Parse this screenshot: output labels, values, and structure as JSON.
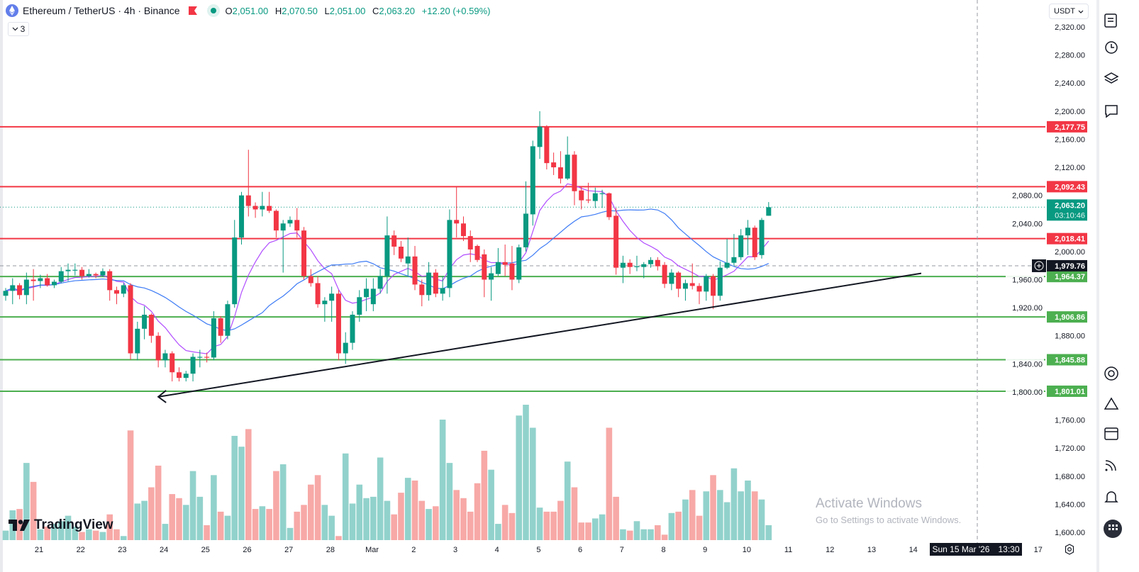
{
  "header": {
    "symbol_title": "Ethereum / TetherUS · 4h · Binance",
    "ohlc": {
      "open_label": "O",
      "open": "2,051.00",
      "high_label": "H",
      "high": "2,070.50",
      "low_label": "L",
      "low": "2,051.00",
      "close_label": "C",
      "close": "2,063.20",
      "change": "+12.20 (+0.59%)"
    },
    "indicators_toggle": "3",
    "icons": [
      "ethereum-logo-icon",
      "flag-icon",
      "market-open-dot-icon",
      "chevron-down-icon"
    ]
  },
  "currency_select": {
    "value": "USDT"
  },
  "colors": {
    "up": "#089981",
    "down": "#f23645",
    "volume_up": "#92d2cc",
    "volume_down": "#f7a9a7",
    "resistance": "#f23645",
    "support": "#4caf50",
    "ma_fast": "#b04cff",
    "ma_slow": "#3d7bf5",
    "trendline": "#131722"
  },
  "price_axis": {
    "ticks": [
      "2,320.00",
      "2,280.00",
      "2,240.00",
      "2,200.00",
      "2,160.00",
      "2,120.00",
      "2,080.00",
      "2,040.00",
      "2,000.00",
      "1,960.00",
      "1,920.00",
      "1,880.00",
      "1,840.00",
      "1,800.00",
      "1,760.00",
      "1,720.00",
      "1,680.00",
      "1,640.00",
      "1,600.00"
    ],
    "tick_values": [
      2320,
      2280,
      2240,
      2200,
      2160,
      2120,
      2080,
      2040,
      2000,
      1960,
      1920,
      1880,
      1840,
      1800,
      1760,
      1720,
      1680,
      1640,
      1600
    ]
  },
  "horizontal_levels": [
    {
      "price": 2177.75,
      "label": "2,177.75",
      "type": "resistance"
    },
    {
      "price": 2092.43,
      "label": "2,092.43",
      "type": "resistance"
    },
    {
      "price": 2018.41,
      "label": "2,018.41",
      "type": "resistance"
    },
    {
      "price": 1964.37,
      "label": "1,964.37",
      "type": "support"
    },
    {
      "price": 1906.86,
      "label": "1,906.86",
      "type": "support"
    },
    {
      "price": 1845.88,
      "label": "1,845.88",
      "type": "support"
    },
    {
      "price": 1801.01,
      "label": "1,801.01",
      "type": "support"
    }
  ],
  "current_price": {
    "price": 2063.2,
    "label": "2,063.20",
    "countdown": "03:10:46"
  },
  "crosshair": {
    "price": 1979.76,
    "label": "1,979.76",
    "time_label_day": "Sun 15 Mar '26",
    "time_label_time": "13:30"
  },
  "trendline": {
    "from": {
      "candle": 27,
      "price": 1801
    },
    "to": {
      "candle": 132,
      "price": 1969
    },
    "arrow_end": {
      "candle": 22,
      "price": 1793
    }
  },
  "date_axis": [
    "21",
    "22",
    "23",
    "24",
    "25",
    "26",
    "27",
    "28",
    "Mar",
    "2",
    "3",
    "4",
    "5",
    "6",
    "7",
    "8",
    "9",
    "10",
    "11",
    "12",
    "13",
    "14",
    "17"
  ],
  "chart_data": {
    "type": "candlestick",
    "interval": "4h",
    "ohlc": [
      [
        1937,
        1948,
        1930,
        1944
      ],
      [
        1944,
        1962,
        1925,
        1952
      ],
      [
        1952,
        1955,
        1932,
        1938
      ],
      [
        1938,
        1970,
        1925,
        1960
      ],
      [
        1960,
        1975,
        1930,
        1958
      ],
      [
        1958,
        1967,
        1948,
        1962
      ],
      [
        1962,
        1968,
        1950,
        1952
      ],
      [
        1952,
        1960,
        1948,
        1957
      ],
      [
        1957,
        1978,
        1955,
        1972
      ],
      [
        1972,
        1983,
        1958,
        1974
      ],
      [
        1974,
        1983,
        1966,
        1974
      ],
      [
        1974,
        1978,
        1960,
        1965
      ],
      [
        1965,
        1975,
        1963,
        1968
      ],
      [
        1968,
        1970,
        1962,
        1966
      ],
      [
        1966,
        1976,
        1964,
        1972
      ],
      [
        1972,
        1975,
        1930,
        1945
      ],
      [
        1945,
        1950,
        1925,
        1940
      ],
      [
        1940,
        1955,
        1935,
        1952
      ],
      [
        1952,
        1955,
        1846,
        1855
      ],
      [
        1855,
        1900,
        1845,
        1890
      ],
      [
        1890,
        1922,
        1875,
        1910
      ],
      [
        1910,
        1912,
        1870,
        1880
      ],
      [
        1880,
        1885,
        1835,
        1845
      ],
      [
        1845,
        1860,
        1835,
        1855
      ],
      [
        1855,
        1858,
        1815,
        1828
      ],
      [
        1828,
        1835,
        1815,
        1820
      ],
      [
        1820,
        1830,
        1815,
        1826
      ],
      [
        1826,
        1855,
        1815,
        1850
      ],
      [
        1850,
        1860,
        1835,
        1850
      ],
      [
        1850,
        1856,
        1842,
        1849
      ],
      [
        1849,
        1915,
        1845,
        1905
      ],
      [
        1905,
        1908,
        1870,
        1880
      ],
      [
        1880,
        1930,
        1875,
        1925
      ],
      [
        1925,
        2045,
        1920,
        2020
      ],
      [
        2020,
        2085,
        2010,
        2080
      ],
      [
        2080,
        2145,
        2050,
        2065
      ],
      [
        2065,
        2070,
        2048,
        2060
      ],
      [
        2060,
        2085,
        2050,
        2065
      ],
      [
        2065,
        2085,
        2055,
        2058
      ],
      [
        2058,
        2060,
        2020,
        2030
      ],
      [
        2030,
        2045,
        1970,
        2040
      ],
      [
        2040,
        2050,
        2035,
        2045
      ],
      [
        2045,
        2062,
        2020,
        2030
      ],
      [
        2030,
        2035,
        1960,
        1965
      ],
      [
        1965,
        1975,
        1950,
        1955
      ],
      [
        1955,
        1965,
        1920,
        1925
      ],
      [
        1925,
        1935,
        1900,
        1930
      ],
      [
        1930,
        1950,
        1900,
        1940
      ],
      [
        1940,
        1945,
        1845,
        1855
      ],
      [
        1855,
        1885,
        1840,
        1870
      ],
      [
        1870,
        1915,
        1860,
        1910
      ],
      [
        1910,
        1945,
        1900,
        1935
      ],
      [
        1935,
        1962,
        1915,
        1947
      ],
      [
        1925,
        1962,
        1915,
        1947
      ],
      [
        1947,
        1975,
        1940,
        1965
      ],
      [
        1965,
        2050,
        1940,
        2023
      ],
      [
        2023,
        2030,
        1995,
        2007
      ],
      [
        2007,
        2015,
        1985,
        1990
      ],
      [
        1983,
        2020,
        1965,
        1993
      ],
      [
        1993,
        2008,
        1945,
        1953
      ],
      [
        1953,
        1960,
        1922,
        1938
      ],
      [
        1938,
        1985,
        1930,
        1970
      ],
      [
        1970,
        1975,
        1935,
        1940
      ],
      [
        1940,
        1965,
        1930,
        1948
      ],
      [
        1948,
        2060,
        1935,
        2045
      ],
      [
        2045,
        2093,
        2020,
        2040
      ],
      [
        2040,
        2050,
        2015,
        2022
      ],
      [
        2022,
        2030,
        1985,
        2003
      ],
      [
        2008,
        2010,
        1985,
        1988
      ],
      [
        1996,
        2003,
        1935,
        1960
      ],
      [
        1960,
        1978,
        1930,
        1969
      ],
      [
        1968,
        2005,
        1965,
        1985
      ],
      [
        1985,
        2010,
        1965,
        1981
      ],
      [
        1983,
        2008,
        1945,
        1960
      ],
      [
        1960,
        2010,
        1955,
        2006
      ],
      [
        2006,
        2100,
        2000,
        2054
      ],
      [
        2053,
        2158,
        2037,
        2150
      ],
      [
        2149,
        2200,
        2132,
        2178
      ],
      [
        2178,
        2180,
        2117,
        2126
      ],
      [
        2127,
        2141,
        2109,
        2120
      ],
      [
        2120,
        2143,
        2097,
        2104
      ],
      [
        2104,
        2164,
        2102,
        2138
      ],
      [
        2138,
        2143,
        2066,
        2086
      ],
      [
        2087,
        2092,
        2060,
        2073
      ],
      [
        2074,
        2098,
        2069,
        2073
      ],
      [
        2072,
        2091,
        2062,
        2083
      ],
      [
        2083,
        2088,
        2062,
        2083
      ],
      [
        2083,
        2084,
        2045,
        2049
      ],
      [
        2051,
        2062,
        1967,
        1977
      ],
      [
        1977,
        1994,
        1955,
        1984
      ],
      [
        1984,
        1989,
        1968,
        1978
      ],
      [
        1978,
        1994,
        1972,
        1979
      ],
      [
        1978,
        1985,
        1962,
        1982
      ],
      [
        1982,
        1992,
        1977,
        1988
      ],
      [
        1988,
        1992,
        1973,
        1979
      ],
      [
        1981,
        1985,
        1948,
        1954
      ],
      [
        1954,
        1975,
        1945,
        1970
      ],
      [
        1970,
        1972,
        1935,
        1947
      ],
      [
        1947,
        1960,
        1930,
        1955
      ],
      [
        1955,
        1983,
        1946,
        1951
      ],
      [
        1951,
        1955,
        1925,
        1943
      ],
      [
        1943,
        1968,
        1930,
        1965
      ],
      [
        1965,
        1968,
        1918,
        1937
      ],
      [
        1937,
        1986,
        1930,
        1977
      ],
      [
        1977,
        2018,
        1975,
        1984
      ],
      [
        1984,
        2025,
        1980,
        1992
      ],
      [
        1992,
        2032,
        1988,
        2023
      ],
      [
        2023,
        2045,
        1995,
        2034
      ],
      [
        2034,
        2037,
        1988,
        1992
      ],
      [
        1995,
        2048,
        1990,
        2045
      ],
      [
        2051,
        2070.5,
        2051,
        2063.2
      ]
    ],
    "volume_relative_percent": [
      7,
      22,
      23,
      57,
      43,
      8,
      10,
      12,
      14,
      18,
      10,
      6,
      8,
      7,
      6,
      19,
      8,
      3,
      81,
      27,
      29,
      39,
      55,
      12,
      34,
      31,
      26,
      51,
      32,
      11,
      48,
      21,
      18,
      77,
      69,
      82,
      23,
      25,
      23,
      51,
      56,
      9,
      21,
      26,
      41,
      48,
      26,
      18,
      3,
      64,
      27,
      41,
      31,
      32,
      61,
      29,
      19,
      35,
      46,
      44,
      29,
      23,
      25,
      89,
      57,
      37,
      31,
      21,
      42,
      66,
      52,
      12,
      26,
      20,
      92,
      100,
      83,
      24,
      21,
      21,
      29,
      58,
      39,
      13,
      13,
      16,
      19,
      83,
      32,
      8,
      7,
      14,
      8,
      8,
      11,
      4,
      20,
      21,
      30,
      37,
      18,
      36,
      48,
      37,
      28,
      53,
      36,
      44,
      36,
      30,
      11
    ],
    "overlays": [
      "moving-average-fast",
      "moving-average-slow"
    ],
    "y_range": [
      1600,
      2320
    ],
    "grid": false
  },
  "watermark": {
    "title": "Activate Windows",
    "subtitle": "Go to Settings to activate Windows."
  },
  "branding": {
    "logo_text": "TradingView"
  }
}
